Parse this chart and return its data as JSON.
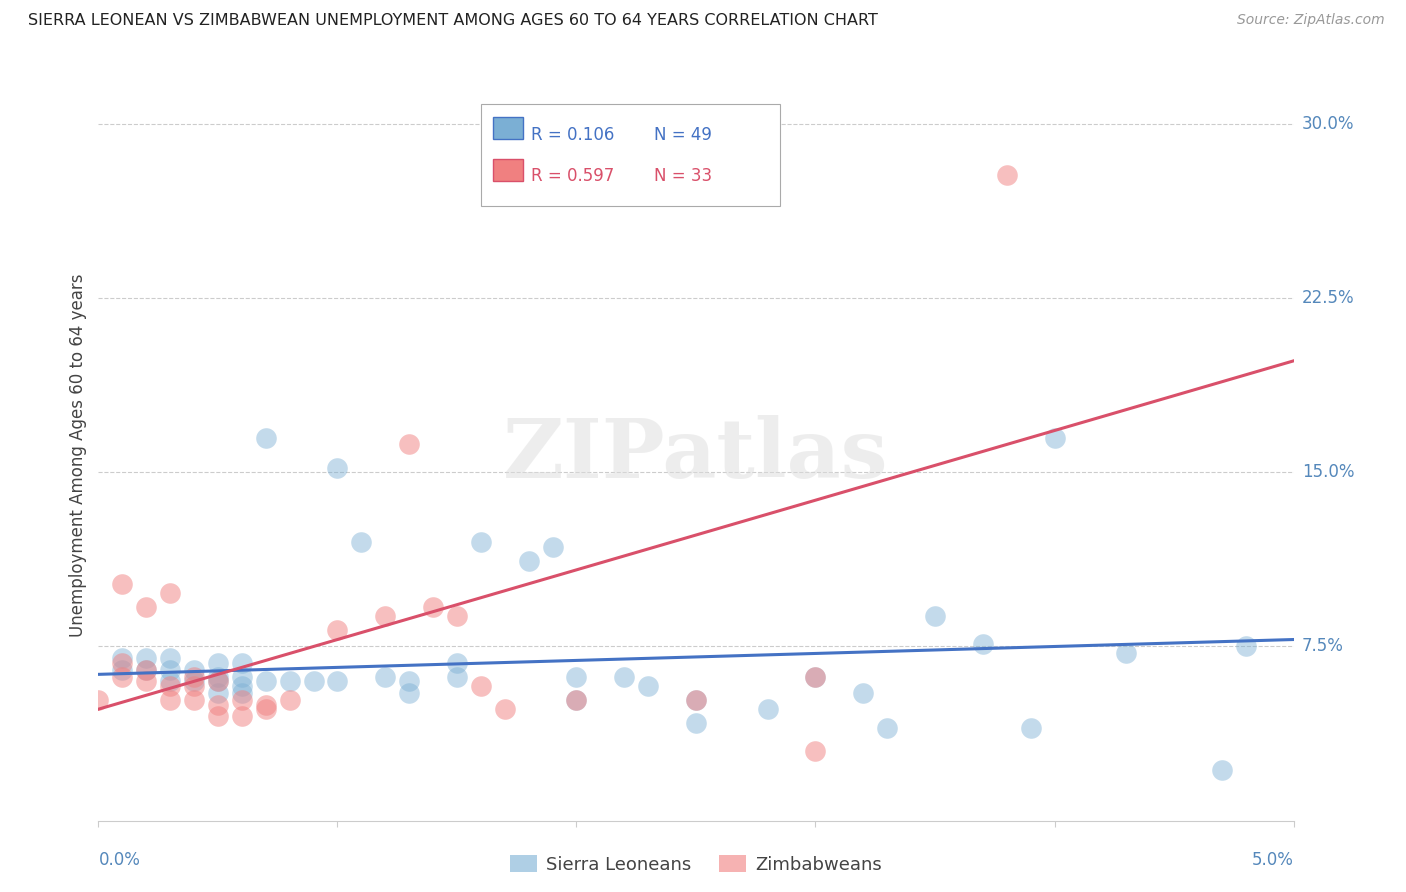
{
  "title": "SIERRA LEONEAN VS ZIMBABWEAN UNEMPLOYMENT AMONG AGES 60 TO 64 YEARS CORRELATION CHART",
  "source": "Source: ZipAtlas.com",
  "ylabel": "Unemployment Among Ages 60 to 64 years",
  "ytick_labels": [
    "7.5%",
    "15.0%",
    "22.5%",
    "30.0%"
  ],
  "ytick_values": [
    0.075,
    0.15,
    0.225,
    0.3
  ],
  "xlim": [
    0.0,
    0.05
  ],
  "ylim": [
    0.0,
    0.315
  ],
  "sl_color": "#7bafd4",
  "zim_color": "#f08080",
  "sl_line_color": "#4472c4",
  "zim_line_color": "#d9506a",
  "axis_label_color": "#5588bb",
  "title_color": "#222222",
  "source_color": "#999999",
  "grid_color": "#cccccc",
  "bg_color": "#ffffff",
  "watermark": "ZIPatlas",
  "sl_R": "0.106",
  "sl_N": "49",
  "zim_R": "0.597",
  "zim_N": "33",
  "sl_x": [
    0.001,
    0.001,
    0.002,
    0.002,
    0.003,
    0.003,
    0.003,
    0.004,
    0.004,
    0.005,
    0.005,
    0.005,
    0.005,
    0.006,
    0.006,
    0.006,
    0.006,
    0.007,
    0.007,
    0.008,
    0.009,
    0.01,
    0.01,
    0.011,
    0.012,
    0.013,
    0.013,
    0.015,
    0.015,
    0.016,
    0.018,
    0.019,
    0.02,
    0.022,
    0.023,
    0.025,
    0.025,
    0.028,
    0.03,
    0.032,
    0.033,
    0.035,
    0.037,
    0.039,
    0.04,
    0.043,
    0.047,
    0.048,
    0.02
  ],
  "sl_y": [
    0.065,
    0.07,
    0.065,
    0.07,
    0.06,
    0.065,
    0.07,
    0.06,
    0.065,
    0.055,
    0.06,
    0.062,
    0.068,
    0.055,
    0.058,
    0.062,
    0.068,
    0.06,
    0.165,
    0.06,
    0.06,
    0.06,
    0.152,
    0.12,
    0.062,
    0.055,
    0.06,
    0.062,
    0.068,
    0.12,
    0.112,
    0.118,
    0.062,
    0.062,
    0.058,
    0.042,
    0.052,
    0.048,
    0.062,
    0.055,
    0.04,
    0.088,
    0.076,
    0.04,
    0.165,
    0.072,
    0.022,
    0.075,
    0.052
  ],
  "zim_x": [
    0.0,
    0.001,
    0.001,
    0.001,
    0.002,
    0.002,
    0.002,
    0.003,
    0.003,
    0.003,
    0.004,
    0.004,
    0.004,
    0.005,
    0.005,
    0.005,
    0.006,
    0.006,
    0.007,
    0.007,
    0.008,
    0.01,
    0.012,
    0.013,
    0.014,
    0.015,
    0.016,
    0.017,
    0.02,
    0.025,
    0.03,
    0.038,
    0.03
  ],
  "zim_y": [
    0.052,
    0.062,
    0.068,
    0.102,
    0.06,
    0.065,
    0.092,
    0.052,
    0.058,
    0.098,
    0.052,
    0.058,
    0.062,
    0.045,
    0.05,
    0.06,
    0.045,
    0.052,
    0.048,
    0.05,
    0.052,
    0.082,
    0.088,
    0.162,
    0.092,
    0.088,
    0.058,
    0.048,
    0.052,
    0.052,
    0.03,
    0.278,
    0.062
  ],
  "sl_trend_x": [
    0.0,
    0.05
  ],
  "sl_trend_y": [
    0.063,
    0.078
  ],
  "zim_trend_x": [
    0.0,
    0.05
  ],
  "zim_trend_y": [
    0.048,
    0.198
  ]
}
